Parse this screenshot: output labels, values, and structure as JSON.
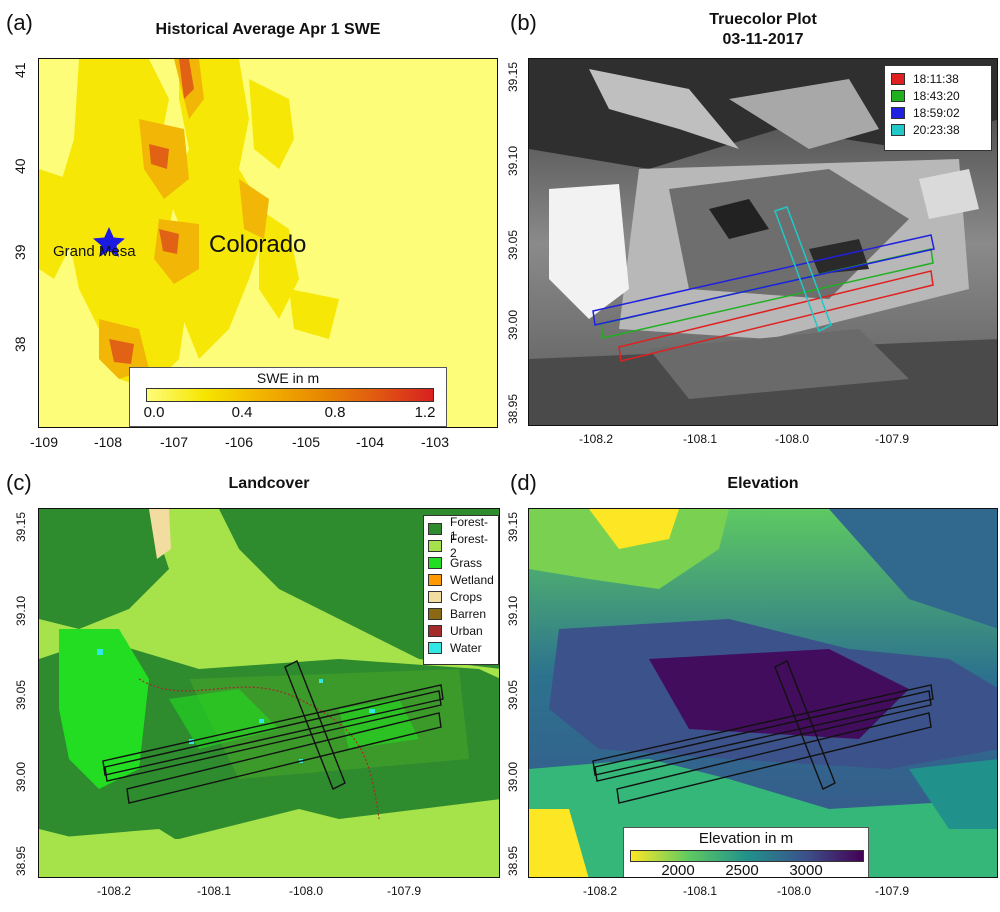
{
  "panels": {
    "a": {
      "letter": "(a)",
      "title": "Historical Average Apr 1 SWE",
      "x_ticks": [
        "-109",
        "-108",
        "-107",
        "-106",
        "-105",
        "-104",
        "-103"
      ],
      "y_ticks": [
        "41",
        "40",
        "39",
        "38"
      ],
      "star_label": "Grand Mesa",
      "state_label": "Colorado",
      "colorbar": {
        "title": "SWE in m",
        "ticks": [
          "0.0",
          "0.4",
          "0.8",
          "1.2"
        ]
      },
      "colors": {
        "background": "#fdfd7a",
        "low": "#f6e600",
        "mid": "#f2b400",
        "high": "#e05a10",
        "star": "#1a1ae0"
      }
    },
    "b": {
      "letter": "(b)",
      "title": "Truecolor Plot",
      "subtitle": "03-11-2017",
      "x_ticks": [
        "-108.2",
        "-108.1",
        "-108.0",
        "-107.9"
      ],
      "y_ticks": [
        "39.15",
        "39.10",
        "39.05",
        "39.00",
        "38.95"
      ],
      "legend": [
        {
          "label": "18:11:38",
          "color": "#e02020"
        },
        {
          "label": "18:43:20",
          "color": "#20b020"
        },
        {
          "label": "18:59:02",
          "color": "#2020e0"
        },
        {
          "label": "20:23:38",
          "color": "#20c8c8"
        }
      ]
    },
    "c": {
      "letter": "(c)",
      "title": "Landcover",
      "x_ticks": [
        "-108.2",
        "-108.1",
        "-108.0",
        "-107.9"
      ],
      "y_ticks": [
        "39.15",
        "39.10",
        "39.05",
        "39.00",
        "38.95"
      ],
      "legend": [
        {
          "label": "Forest-1",
          "color": "#2e8b2e"
        },
        {
          "label": "Forest-2",
          "color": "#a6e34a"
        },
        {
          "label": "Grass",
          "color": "#22dd22"
        },
        {
          "label": "Wetland",
          "color": "#ff9900"
        },
        {
          "label": "Crops",
          "color": "#f2dca0"
        },
        {
          "label": "Barren",
          "color": "#8b6914"
        },
        {
          "label": "Urban",
          "color": "#a52a2a"
        },
        {
          "label": "Water",
          "color": "#33e6e6"
        }
      ]
    },
    "d": {
      "letter": "(d)",
      "title": "Elevation",
      "x_ticks": [
        "-108.2",
        "-108.1",
        "-108.0",
        "-107.9"
      ],
      "y_ticks": [
        "39.15",
        "39.10",
        "39.05",
        "39.00",
        "38.95"
      ],
      "colorbar": {
        "title": "Elevation in m",
        "ticks": [
          "2000",
          "2500",
          "3000"
        ]
      },
      "colors": {
        "low": "#f5e51f",
        "mid": "#21918c",
        "high": "#440154"
      }
    }
  }
}
